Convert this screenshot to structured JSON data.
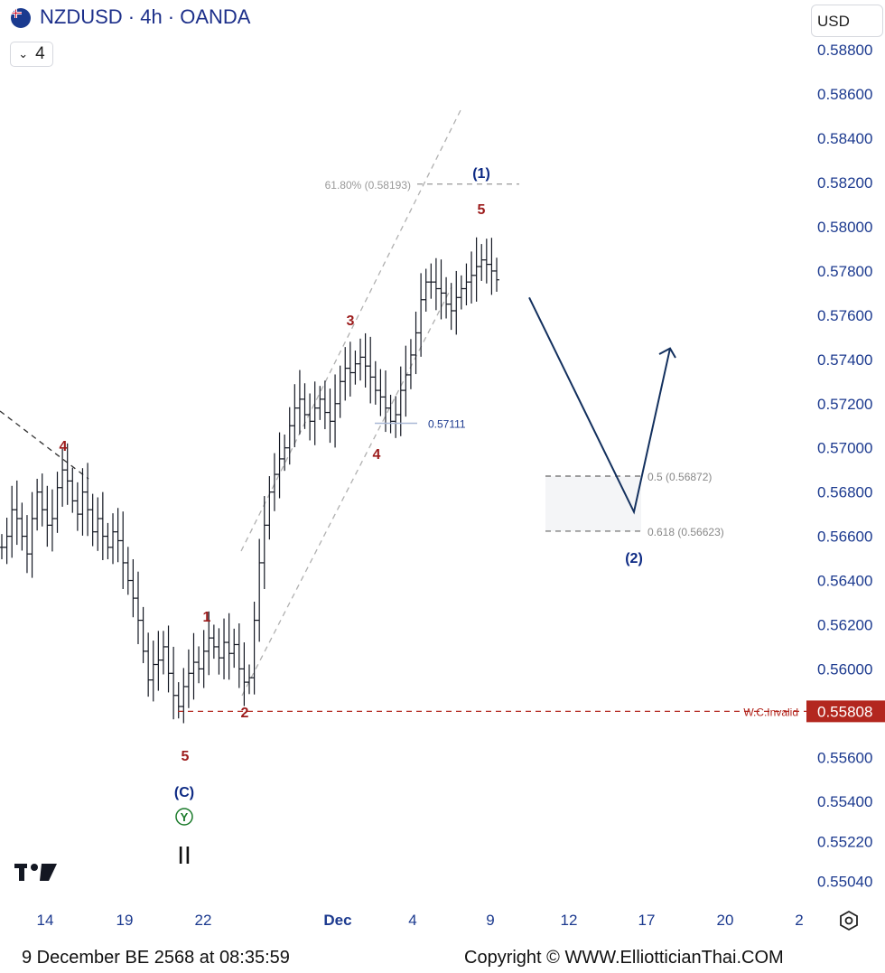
{
  "header": {
    "title": "NZDUSD · 4h · OANDA",
    "interval_count": "4",
    "currency": "USD"
  },
  "footer": {
    "timestamp": "9 December BE 2568 at 08:35:59",
    "copyright": "Copyright © WWW.ElliotticianThai.COM"
  },
  "colors": {
    "bar": "#131722",
    "wave_red": "#9c1b1b",
    "wave_navy": "#0d2a84",
    "axis_text": "#1c3a8f",
    "arrow": "#13305e",
    "invalid": "#b3271f"
  },
  "icons": [
    "nz-flag-icon",
    "chevron-down-icon",
    "tradingview-logo-icon",
    "settings-hexagon-icon"
  ],
  "chart_data": {
    "type": "ohlc",
    "symbol": "NZDUSD",
    "timeframe": "4h",
    "ylim": [
      0.5497,
      0.5887
    ],
    "y_ticks": [
      "0.58800",
      "0.58600",
      "0.58400",
      "0.58200",
      "0.58000",
      "0.57800",
      "0.57600",
      "0.57400",
      "0.57200",
      "0.57000",
      "0.56800",
      "0.56600",
      "0.56400",
      "0.56200",
      "0.56000",
      "0.55808",
      "0.55600",
      "0.55400",
      "0.55220",
      "0.55040"
    ],
    "x_ticks": [
      "14",
      "19",
      "22",
      "Dec",
      "4",
      "9",
      "12",
      "17",
      "20",
      "2"
    ],
    "close_path": [
      0.5655,
      0.566,
      0.5672,
      0.5668,
      0.566,
      0.5652,
      0.5668,
      0.568,
      0.5672,
      0.5665,
      0.5668,
      0.5682,
      0.569,
      0.5685,
      0.5676,
      0.567,
      0.568,
      0.5672,
      0.5662,
      0.5668,
      0.566,
      0.5655,
      0.5662,
      0.5658,
      0.5648,
      0.564,
      0.5632,
      0.5622,
      0.5608,
      0.5595,
      0.5602,
      0.5604,
      0.561,
      0.5598,
      0.5588,
      0.5583,
      0.5592,
      0.5598,
      0.5603,
      0.56,
      0.5608,
      0.5614,
      0.561,
      0.5605,
      0.5612,
      0.5607,
      0.5611,
      0.56,
      0.5594,
      0.5596,
      0.5622,
      0.5648,
      0.5665,
      0.568,
      0.5688,
      0.5695,
      0.57,
      0.571,
      0.5718,
      0.5722,
      0.5715,
      0.5712,
      0.5718,
      0.5722,
      0.5716,
      0.5712,
      0.572,
      0.573,
      0.5736,
      0.5734,
      0.5738,
      0.5741,
      0.5737,
      0.5732,
      0.5726,
      0.5723,
      0.5718,
      0.5712,
      0.5715,
      0.5726,
      0.5733,
      0.5742,
      0.5752,
      0.5767,
      0.5775,
      0.5775,
      0.5772,
      0.577,
      0.5765,
      0.5762,
      0.5768,
      0.5772,
      0.5775,
      0.5778,
      0.5782,
      0.5785,
      0.5783,
      0.578,
      0.5776
    ],
    "annotations": {
      "waves": [
        {
          "label": "4",
          "degree": "minor",
          "price": 0.57
        },
        {
          "label": "5",
          "degree": "minor",
          "price": 0.5563
        },
        {
          "label": "(C)",
          "degree": "intermediate"
        },
        {
          "label": "Y",
          "degree": "primary"
        },
        {
          "label": "II",
          "degree": "cycle"
        },
        {
          "label": "1",
          "degree": "minor",
          "price": 0.562
        },
        {
          "label": "2",
          "degree": "minor",
          "price": 0.5583
        },
        {
          "label": "3",
          "degree": "minor",
          "price": 0.576
        },
        {
          "label": "4",
          "degree": "minor",
          "price": 0.57
        },
        {
          "label": "5",
          "degree": "minor",
          "price": 0.5812
        },
        {
          "label": "(1)",
          "degree": "intermediate",
          "price": 0.5828
        },
        {
          "label": "(2)",
          "degree": "intermediate",
          "price": 0.5647
        }
      ],
      "fib_extension": {
        "text": "61.80% (0.58193)",
        "price": 0.58193
      },
      "support": {
        "text": "0.57111",
        "price": 0.57111
      },
      "retracements": [
        {
          "text": "0.5 (0.56872)",
          "price": 0.56872
        },
        {
          "text": "0.618 (0.56623)",
          "price": 0.56623
        }
      ],
      "invalidation": {
        "text": "W.C.Invalid",
        "price": 0.55808,
        "label": "0.55808"
      },
      "projection": {
        "from": 0.5768,
        "to": 0.5671,
        "then": 0.5745
      }
    }
  }
}
